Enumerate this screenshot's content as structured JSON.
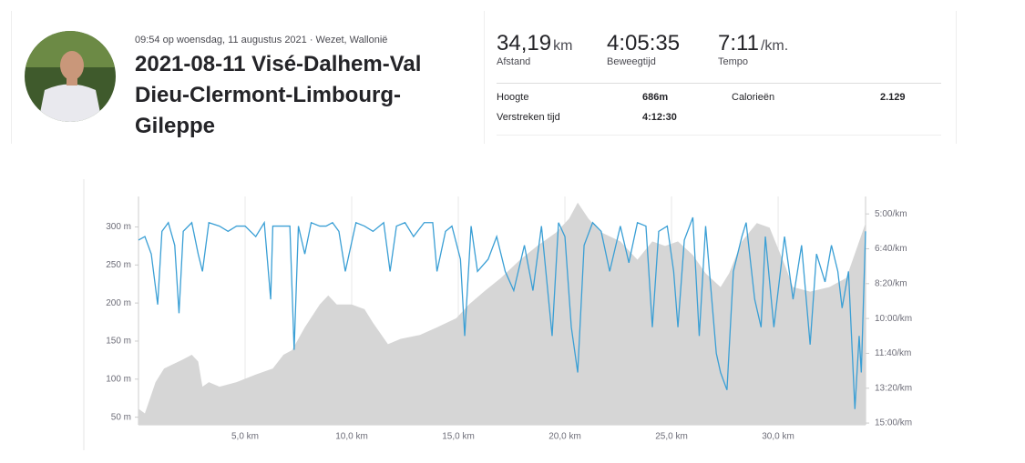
{
  "header": {
    "meta": "09:54 op woensdag, 11 augustus 2021 · Wezet, Wallonië",
    "title": "2021-08-11 Visé-Dalhem-Val Dieu-Clermont-Limbourg-Gileppe"
  },
  "stats": {
    "primary": [
      {
        "value": "34,19",
        "unit": "km",
        "label": "Afstand"
      },
      {
        "value": "4:05:35",
        "label": "Beweegtijd"
      },
      {
        "value": "7:11",
        "unit": "/km.",
        "label": "Tempo"
      }
    ],
    "secondary": [
      {
        "label": "Hoogte",
        "value": "686m"
      },
      {
        "label": "Calorieën",
        "value": "2.129"
      },
      {
        "label": "Verstreken tijd",
        "value": "4:12:30"
      }
    ]
  },
  "chart_data": {
    "type": "combo",
    "xlim": [
      0,
      34.1
    ],
    "xticks": [
      {
        "value": 5,
        "label": "5,0 km"
      },
      {
        "value": 10,
        "label": "10,0 km"
      },
      {
        "value": 15,
        "label": "15,0 km"
      },
      {
        "value": 20,
        "label": "20,0 km"
      },
      {
        "value": 25,
        "label": "25,0 km"
      },
      {
        "value": 30,
        "label": "30,0 km"
      }
    ],
    "ylim": [
      40,
      340
    ],
    "yticks": [
      {
        "value": 50,
        "label": "50 m"
      },
      {
        "value": 100,
        "label": "100 m"
      },
      {
        "value": 150,
        "label": "150 m"
      },
      {
        "value": 200,
        "label": "200 m"
      },
      {
        "value": 250,
        "label": "250 m"
      },
      {
        "value": 300,
        "label": "300 m"
      }
    ],
    "y2lim": [
      905,
      250
    ],
    "y2ticks": [
      {
        "value": 300,
        "label": "5:00/km"
      },
      {
        "value": 400,
        "label": "6:40/km"
      },
      {
        "value": 500,
        "label": "8:20/km"
      },
      {
        "value": 600,
        "label": "10:00/km"
      },
      {
        "value": 700,
        "label": "11:40/km"
      },
      {
        "value": 800,
        "label": "13:20/km"
      },
      {
        "value": 900,
        "label": "15:00/km"
      }
    ],
    "grid": true,
    "series": [
      {
        "type": "area",
        "color": "#d6d6d6",
        "x": [
          0,
          0.3,
          0.8,
          1.2,
          2.1,
          2.5,
          2.8,
          3.0,
          3.3,
          3.8,
          4.6,
          5.5,
          6.3,
          6.8,
          7.2,
          7.8,
          8.5,
          8.9,
          9.3,
          10.0,
          10.6,
          11.0,
          11.7,
          12.3,
          13.2,
          14.0,
          14.9,
          15.5,
          16.2,
          17.0,
          17.9,
          18.7,
          19.6,
          20.2,
          20.6,
          21.1,
          21.7,
          22.6,
          23.4,
          24.1,
          24.7,
          25.3,
          26.0,
          26.6,
          27.3,
          27.7,
          28.3,
          29.0,
          29.6,
          30.3,
          30.7,
          31.5,
          32.4,
          33.2,
          34.1
        ],
        "values": [
          61,
          55,
          96,
          114,
          126,
          132,
          123,
          90,
          96,
          90,
          96,
          106,
          114,
          132,
          138,
          168,
          198,
          210,
          198,
          198,
          192,
          174,
          146,
          153,
          158,
          168,
          180,
          198,
          215,
          233,
          257,
          275,
          293,
          311,
          332,
          311,
          293,
          281,
          257,
          281,
          275,
          281,
          263,
          239,
          221,
          239,
          281,
          305,
          299,
          251,
          221,
          215,
          221,
          233,
          305
        ]
      },
      {
        "type": "line",
        "axis": "y2",
        "color": "#3a9fd5",
        "x": [
          0.0,
          0.3,
          0.6,
          0.9,
          1.1,
          1.4,
          1.7,
          1.9,
          2.1,
          2.5,
          2.8,
          3.0,
          3.3,
          3.8,
          4.2,
          4.6,
          5.0,
          5.5,
          5.9,
          6.2,
          6.3,
          6.8,
          7.1,
          7.3,
          7.5,
          7.8,
          8.1,
          8.5,
          8.8,
          9.1,
          9.4,
          9.7,
          10.2,
          10.6,
          11.0,
          11.5,
          11.8,
          12.1,
          12.5,
          12.9,
          13.4,
          13.8,
          14.0,
          14.4,
          14.7,
          15.1,
          15.3,
          15.6,
          15.9,
          16.4,
          16.8,
          17.2,
          17.6,
          18.1,
          18.5,
          18.9,
          19.4,
          19.7,
          20.0,
          20.3,
          20.6,
          20.9,
          21.3,
          21.7,
          22.1,
          22.6,
          23.0,
          23.4,
          23.8,
          24.1,
          24.4,
          24.8,
          25.1,
          25.3,
          25.6,
          26.0,
          26.3,
          26.6,
          27.1,
          27.3,
          27.6,
          27.9,
          28.3,
          28.5,
          28.9,
          29.2,
          29.4,
          29.8,
          30.3,
          30.7,
          31.1,
          31.5,
          31.8,
          32.2,
          32.5,
          32.8,
          33.0,
          33.3,
          33.6,
          33.8,
          33.9,
          34.1
        ],
        "values": [
          375,
          365,
          415,
          560,
          350,
          325,
          390,
          585,
          350,
          325,
          415,
          465,
          325,
          335,
          350,
          335,
          335,
          365,
          325,
          545,
          335,
          335,
          335,
          690,
          335,
          415,
          325,
          335,
          335,
          325,
          350,
          465,
          325,
          335,
          350,
          325,
          465,
          335,
          325,
          365,
          325,
          325,
          465,
          350,
          335,
          430,
          650,
          335,
          465,
          430,
          365,
          465,
          520,
          390,
          520,
          335,
          650,
          325,
          365,
          625,
          755,
          390,
          325,
          350,
          465,
          335,
          440,
          325,
          335,
          625,
          350,
          335,
          465,
          625,
          375,
          310,
          650,
          335,
          700,
          755,
          805,
          465,
          365,
          325,
          545,
          625,
          365,
          625,
          365,
          545,
          390,
          675,
          415,
          495,
          390,
          465,
          570,
          465,
          860,
          650,
          755,
          350
        ]
      }
    ]
  }
}
